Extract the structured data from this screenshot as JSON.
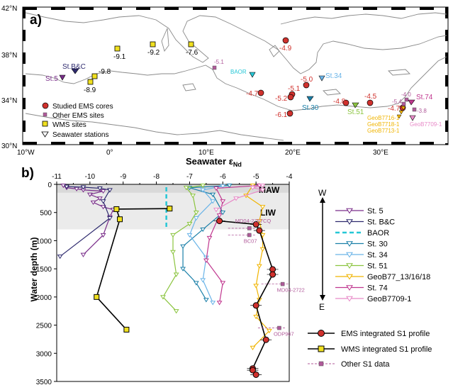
{
  "panel_a": {
    "label": "a)",
    "lat_labels": [
      "42°N",
      "38°N",
      "34°N",
      "30°N"
    ],
    "lon_labels": [
      "10°W",
      "0°",
      "10°E",
      "20°E",
      "30°E"
    ],
    "legend": [
      {
        "label": "Studied EMS cores",
        "marker": "circle",
        "color": "#d0312d"
      },
      {
        "label": "Other EMS sites",
        "marker": "small-square",
        "color": "#b05a9a"
      },
      {
        "label": "WMS sites",
        "marker": "square",
        "color": "#f0e020"
      },
      {
        "label": "Seawater stations",
        "marker": "triangle-down",
        "color": "#ffffff"
      }
    ],
    "wms_sites": [
      {
        "value": "-9.1"
      },
      {
        "value": "-9.2"
      },
      {
        "value": "-7.6"
      },
      {
        "value": "-9.8"
      },
      {
        "value": "-8.9"
      }
    ],
    "ems_cores": [
      {
        "value": "-4.9"
      },
      {
        "value": "-5.0"
      },
      {
        "value": "-5.1"
      },
      {
        "value": "-4.7"
      },
      {
        "value": "-5.2"
      },
      {
        "value": "-4.8"
      },
      {
        "value": "-4.5"
      },
      {
        "value": "-6.1"
      },
      {
        "value": "-4.7"
      }
    ],
    "other_sites": [
      {
        "value": "-5.1"
      },
      {
        "value": "-4.0"
      },
      {
        "value": "-5.4"
      },
      {
        "value": "-3.8"
      }
    ],
    "stations": [
      {
        "name": "St.B&C",
        "color": "#2e2a6e"
      },
      {
        "name": "St.5",
        "color": "#7a2e8a"
      },
      {
        "name": "BAOR",
        "color": "#26c7d6"
      },
      {
        "name": "St.34",
        "color": "#6ab4e8"
      },
      {
        "name": "St.30",
        "color": "#1a7fa8"
      },
      {
        "name": "St.51",
        "color": "#8bc43f"
      },
      {
        "name": "St.74",
        "color": "#c0378f"
      },
      {
        "name": "GeoB7709-1",
        "color": "#e88ac8"
      }
    ],
    "geob_labels": [
      "GeoB7716-1",
      "GeoB7718-1",
      "GeoB7713-1"
    ]
  },
  "panel_b": {
    "label": "b)",
    "water_masses": [
      "MAW",
      "LIW"
    ],
    "legend_profiles": [
      {
        "label": "EMS integrated S1 profile"
      },
      {
        "label": "WMS integrated S1 profile"
      },
      {
        "label": "Other S1 data"
      }
    ],
    "arrow_labels": {
      "top": "W",
      "bottom": "E"
    },
    "other_data_labels": [
      "MD04-2797CQ",
      "BC07",
      "MD04-2722",
      "ODP967"
    ]
  },
  "chart_data": {
    "type": "line",
    "title": "Seawater εNd",
    "title_main": "Seawater ",
    "title_eps": "ε",
    "title_sub": "Nd",
    "xlabel": "Seawater εNd",
    "ylabel": "Water depth (m)",
    "xlim": [
      -11,
      -4
    ],
    "ylim": [
      0,
      3500
    ],
    "x_axis_position": "top",
    "y_inverted": true,
    "xticks": [
      "-11",
      "-10",
      "-9",
      "-8",
      "-7",
      "-6",
      "-5",
      "-4"
    ],
    "yticks": [
      "0",
      "500",
      "1000",
      "1500",
      "2000",
      "2500",
      "3000",
      "3500"
    ],
    "shaded_bands": [
      {
        "name": "MAW",
        "depth": [
          0,
          150
        ]
      },
      {
        "name": "LIW",
        "depth": [
          150,
          800
        ]
      }
    ],
    "series": [
      {
        "name": "St. 5",
        "color": "#7a2e8a",
        "marker": "triangle-down",
        "points": [
          [
            -10.8,
            20
          ],
          [
            -10.7,
            60
          ],
          [
            -10.4,
            80
          ],
          [
            -10.2,
            100
          ],
          [
            -9.6,
            120
          ],
          [
            -10.0,
            180
          ],
          [
            -9.7,
            250
          ],
          [
            -9.9,
            320
          ],
          [
            -9.6,
            400
          ],
          [
            -9.3,
            450
          ],
          [
            -9.4,
            580
          ],
          [
            -9.6,
            900
          ],
          [
            -10.2,
            1250
          ]
        ]
      },
      {
        "name": "St. B&C",
        "color": "#2e2a6e",
        "marker": "triangle-down",
        "points": [
          [
            -10.7,
            40
          ],
          [
            -10.2,
            50
          ],
          [
            -9.7,
            70
          ],
          [
            -9.4,
            100
          ],
          [
            -9.6,
            300
          ],
          [
            -9.4,
            600
          ],
          [
            -10.9,
            1280
          ]
        ]
      },
      {
        "name": "BAOR",
        "color": "#26c7d6",
        "dash": true,
        "points": [
          [
            -7.7,
            50
          ],
          [
            -7.7,
            150
          ],
          [
            -7.7,
            300
          ],
          [
            -7.7,
            500
          ],
          [
            -7.7,
            650
          ],
          [
            -7.7,
            800
          ]
        ]
      },
      {
        "name": "St. 30",
        "color": "#1a7fa8",
        "marker": "triangle-down",
        "points": [
          [
            -5.8,
            20
          ],
          [
            -7.0,
            60
          ],
          [
            -6.3,
            180
          ],
          [
            -6.0,
            500
          ],
          [
            -6.6,
            800
          ],
          [
            -7.2,
            1100
          ],
          [
            -7.2,
            1500
          ],
          [
            -6.8,
            1750
          ],
          [
            -6.5,
            2050
          ]
        ]
      },
      {
        "name": "St. 34",
        "color": "#6ab4e8",
        "marker": "triangle-down",
        "points": [
          [
            -6.0,
            30
          ],
          [
            -6.6,
            100
          ],
          [
            -6.3,
            300
          ],
          [
            -6.8,
            600
          ],
          [
            -7.0,
            900
          ],
          [
            -6.5,
            1300
          ],
          [
            -6.6,
            1700
          ],
          [
            -6.3,
            2100
          ]
        ]
      },
      {
        "name": "St. 51",
        "color": "#8bc43f",
        "marker": "triangle-down",
        "points": [
          [
            -6.6,
            20
          ],
          [
            -7.1,
            60
          ],
          [
            -6.9,
            200
          ],
          [
            -6.8,
            500
          ],
          [
            -7.0,
            700
          ],
          [
            -7.5,
            900
          ],
          [
            -7.5,
            1200
          ],
          [
            -7.4,
            1600
          ],
          [
            -7.8,
            2000
          ],
          [
            -7.4,
            2250
          ]
        ]
      },
      {
        "name": "GeoB77_13/16/18",
        "color": "#f0b400",
        "marker": "triangle-down",
        "points": [
          [
            -5.1,
            20
          ],
          [
            -5.3,
            200
          ],
          [
            -4.8,
            400
          ],
          [
            -4.9,
            650
          ],
          [
            -4.8,
            900
          ],
          [
            -4.8,
            1150
          ],
          [
            -4.9,
            1450
          ],
          [
            -5.0,
            1800
          ],
          [
            -4.9,
            2050
          ],
          [
            -5.0,
            2350
          ],
          [
            -4.6,
            2600
          ],
          [
            -5.1,
            2900
          ]
        ]
      },
      {
        "name": "St. 74",
        "color": "#c0378f",
        "marker": "triangle-down",
        "points": [
          [
            -4.9,
            20
          ],
          [
            -6.2,
            70
          ],
          [
            -6.0,
            300
          ],
          [
            -6.1,
            550
          ],
          [
            -6.4,
            950
          ],
          [
            -6.5,
            1350
          ],
          [
            -6.0,
            1750
          ],
          [
            -6.1,
            2100
          ]
        ]
      },
      {
        "name": "GeoB7709-1",
        "color": "#e88ac8",
        "marker": "triangle-down",
        "points": [
          [
            -4.8,
            20
          ],
          [
            -5.1,
            60
          ],
          [
            -4.8,
            100
          ],
          [
            -5.6,
            250
          ],
          [
            -6.2,
            450
          ]
        ]
      }
    ],
    "profiles": [
      {
        "name": "EMS integrated S1 profile",
        "color": "#000000",
        "marker": "circle",
        "marker_color": "#d0312d",
        "points": [
          [
            -6.1,
            650
          ],
          [
            -5.0,
            710
          ],
          [
            -4.9,
            820
          ],
          [
            -4.5,
            1510
          ],
          [
            -4.5,
            1600
          ],
          [
            -5.0,
            2150
          ],
          [
            -4.7,
            2760
          ],
          [
            -5.1,
            3270
          ],
          [
            -5.1,
            3300
          ],
          [
            -5.0,
            3380
          ]
        ]
      },
      {
        "name": "WMS integrated S1 profile",
        "color": "#000000",
        "marker": "square",
        "marker_color": "#f0e020",
        "points": [
          [
            -7.6,
            430
          ],
          [
            -9.2,
            440
          ],
          [
            -9.1,
            620
          ],
          [
            -9.8,
            2000
          ],
          [
            -8.9,
            2580
          ]
        ]
      }
    ],
    "other_points": [
      {
        "label": "MD04-2797CQ",
        "x": -5.2,
        "y": 780
      },
      {
        "label": "BC07",
        "x": -5.2,
        "y": 900
      },
      {
        "label": "MD04-2722",
        "x": -4.2,
        "y": 1770
      },
      {
        "label": "ODP967",
        "x": -4.3,
        "y": 2550
      }
    ]
  }
}
